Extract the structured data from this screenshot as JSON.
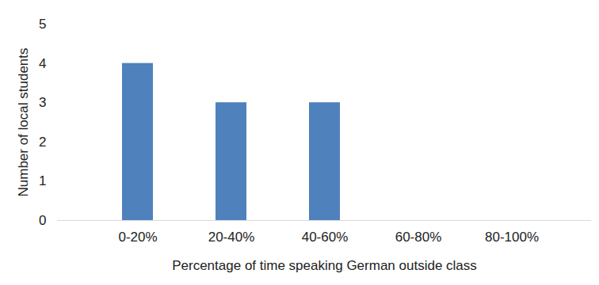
{
  "chart_data": {
    "type": "bar",
    "categories": [
      "0-20%",
      "20-40%",
      "40-60%",
      "60-80%",
      "80-100%"
    ],
    "values": [
      4,
      3,
      3,
      0,
      0
    ],
    "color": "#4f81bd",
    "x_label": "Percentage of time speaking German outside class",
    "y_label": "Number of local students",
    "ylim": [
      0,
      5
    ],
    "yticks": [
      0,
      1,
      2,
      3,
      4,
      5
    ],
    "grid": false
  }
}
